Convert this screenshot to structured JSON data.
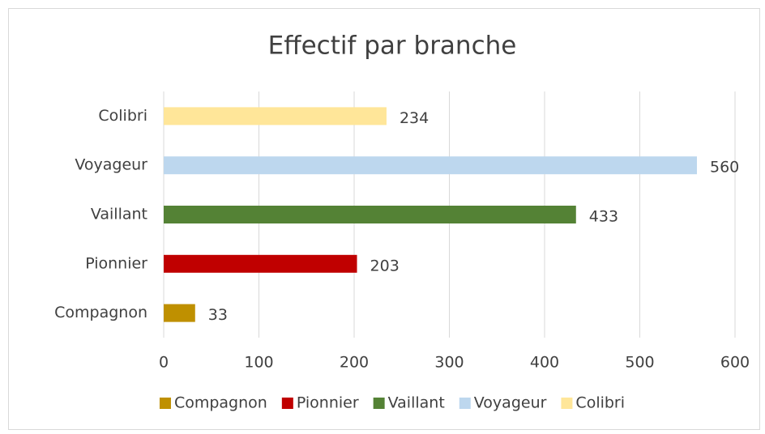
{
  "chart_data": {
    "type": "bar",
    "orientation": "horizontal",
    "title": "Effectif par branche",
    "categories": [
      "Compagnon",
      "Pionnier",
      "Vaillant",
      "Voyageur",
      "Colibri"
    ],
    "values": [
      33,
      203,
      433,
      560,
      234
    ],
    "colors": [
      "#bf9000",
      "#c00000",
      "#548235",
      "#bdd7ee",
      "#ffe699"
    ],
    "xlim": [
      0,
      600
    ],
    "xticks": [
      0,
      100,
      200,
      300,
      400,
      500,
      600
    ],
    "grid": true,
    "legend": "bottom"
  }
}
